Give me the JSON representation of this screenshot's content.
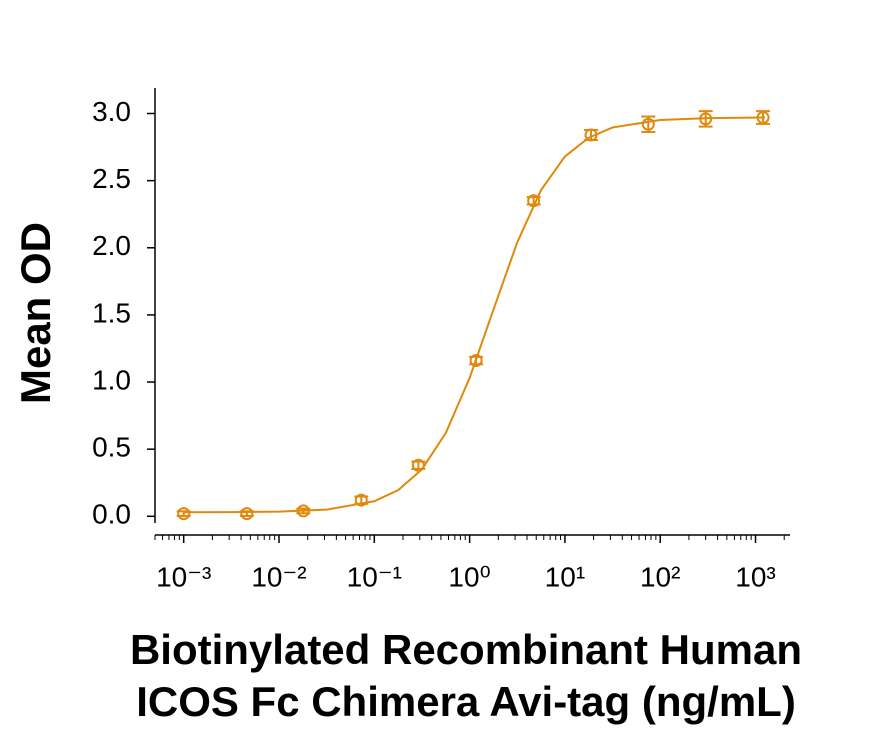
{
  "chart_data": {
    "type": "scatter",
    "ylabel": "Mean OD",
    "xlabel": [
      "Biotinylated Recombinant Human",
      "ICOS Fc Chimera Avi-tag (ng/mL)"
    ],
    "xscale": "log",
    "color": "#e0890d",
    "xlim": [
      0.0005,
      2300
    ],
    "ylim": [
      -0.05,
      3.19
    ],
    "xticks": [
      {
        "value": 0.001,
        "label": "10⁻³"
      },
      {
        "value": 0.01,
        "label": "10⁻²"
      },
      {
        "value": 0.1,
        "label": "10⁻¹"
      },
      {
        "value": 1,
        "label": "10⁰"
      },
      {
        "value": 10,
        "label": "10¹"
      },
      {
        "value": 100,
        "label": "10²"
      },
      {
        "value": 1000,
        "label": "10³"
      }
    ],
    "xminorticks": [
      0.0005,
      0.0006,
      0.0007,
      0.0008,
      0.0009,
      0.002,
      0.003,
      0.004,
      0.005,
      0.006,
      0.007,
      0.008,
      0.009,
      0.02,
      0.03,
      0.04,
      0.05,
      0.06,
      0.07,
      0.08,
      0.09,
      0.2,
      0.3,
      0.4,
      0.5,
      0.6,
      0.7,
      0.8,
      0.9,
      2,
      3,
      4,
      5,
      6,
      7,
      8,
      9,
      20,
      30,
      40,
      50,
      60,
      70,
      80,
      90,
      200,
      300,
      400,
      500,
      600,
      700,
      800,
      900,
      2000
    ],
    "yticks": [
      {
        "value": 0,
        "label": "0.0"
      },
      0.5,
      {
        "value": 1,
        "label": "1.0"
      },
      1.5,
      {
        "value": 2,
        "label": "2.0"
      },
      2.5,
      {
        "value": 3,
        "label": "3.0"
      }
    ],
    "x": [
      0.001,
      0.0046,
      0.018,
      0.073,
      0.29,
      1.17,
      4.7,
      18.8,
      75,
      300,
      1200
    ],
    "values": [
      0.02,
      0.02,
      0.04,
      0.12,
      0.38,
      1.16,
      2.35,
      2.84,
      2.92,
      2.96,
      2.97
    ],
    "errors": [
      0.01,
      0.01,
      0.01,
      0.02,
      0.02,
      0.02,
      0.02,
      0.03,
      0.05,
      0.05,
      0.04
    ],
    "fit": {
      "x": [
        0.001,
        0.00316,
        0.01,
        0.0316,
        0.1,
        0.178,
        0.316,
        0.562,
        1,
        1.78,
        3.16,
        5.62,
        10,
        17.8,
        31.6,
        100,
        316,
        1260
      ],
      "values": [
        0.03,
        0.031,
        0.035,
        0.05,
        0.112,
        0.195,
        0.35,
        0.62,
        1.03,
        1.54,
        2.04,
        2.43,
        2.68,
        2.82,
        2.896,
        2.952,
        2.966,
        2.97
      ]
    }
  }
}
